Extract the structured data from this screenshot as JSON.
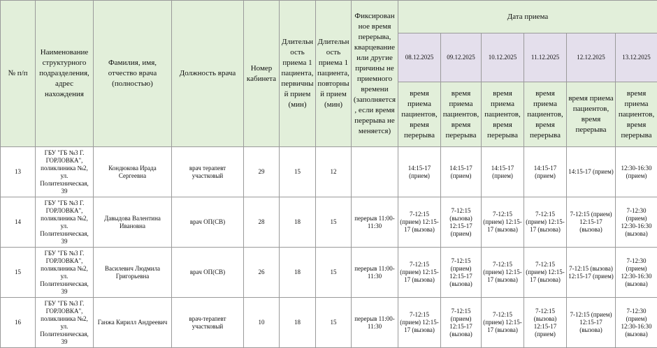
{
  "table": {
    "headers": {
      "num": "№ п/п",
      "org": "Наименование структурного подразделения, адрес нахождения",
      "fio": "Фамилия, имя, отчество врача (полностью)",
      "position": "Должность врача",
      "cabinet": "Номер кабинета",
      "first": "Длительность приема 1 пациента, первичный прием (мин)",
      "repeat": "Длительность приема 1 пациента, повторный прием (мин)",
      "break": "Фиксированное время перерыва, кварцевание или другие причины не приемного времени (заполняется, если время перерыва не меняется)",
      "date_group": "Дата приема"
    },
    "dates": [
      "08.12.2025",
      "09.12.2025",
      "10.12.2025",
      "11.12.2025",
      "12.12.2025",
      "13.12.2025"
    ],
    "subheaders": [
      "время приема пациентов, время перерыва",
      "время приема пациентов, время перерыва",
      "время приема пациентов, время перерыва",
      "время приема пациентов, время перерыва",
      "время приема пациентов, время перерыва",
      "время приема пациентов, время перерыва"
    ],
    "rows": [
      {
        "num": 13,
        "org": "ГБУ \"ГБ №3 Г. ГОРЛОВКА\", поликлиника №2, ул. Политехническая, 39",
        "fio": "Кондюкова Ирада Сергеевна",
        "position": "врач терапевт участковый",
        "cabinet": 29,
        "first": 15,
        "repeat": 12,
        "break": null,
        "schedule": [
          "14:15-17 (прием)",
          "14:15-17 (прием)",
          "14:15-17 (прием)",
          "14:15-17 (прием)",
          "14:15-17 (прием)",
          "12:30-16:30 (прием)"
        ]
      },
      {
        "num": 14,
        "org": "ГБУ \"ГБ №3 Г. ГОРЛОВКА\", поликлиника №2, ул. Политехническая, 39",
        "fio": "Давыдова Валентина Ивановна",
        "position": "врач ОП(СВ)",
        "cabinet": 28,
        "first": 18,
        "repeat": 15,
        "break": "перерыв 11:00-11:30",
        "schedule": [
          "7-12:15 (прием) 12:15-17 (вызова)",
          "7-12:15 (вызова) 12:15-17 (прием)",
          "7-12:15 (прием) 12:15-17 (вызова)",
          "7-12:15 (прием) 12:15-17 (вызова)",
          "7-12:15 (прием) 12:15-17 (вызова)",
          "7-12:30 (прием) 12:30-16:30 (вызова)"
        ]
      },
      {
        "num": 15,
        "org": "ГБУ \"ГБ №3 Г. ГОРЛОВКА\", поликлиника №2, ул. Политехническая, 39",
        "fio": "Василевич Людмила Григорьевна",
        "position": "врач ОП(СВ)",
        "cabinet": 26,
        "first": 18,
        "repeat": 15,
        "break": "перерыв 11:00-11:30",
        "schedule": [
          "7-12:15 (прием) 12:15-17 (вызова)",
          "7-12:15 (прием) 12:15-17 (вызова)",
          "7-12:15 (прием) 12:15-17 (вызова)",
          "7-12:15 (прием) 12:15-17 (вызова)",
          "7-12:15 (вызова) 12:15-17 (прием)",
          "7-12:30 (прием) 12:30-16:30 (вызова)"
        ]
      },
      {
        "num": 16,
        "org": "ГБУ \"ГБ №3 Г. ГОРЛОВКА\", поликлиника №2, ул. Политехническая, 39",
        "fio": "Ганжа Кирилл Андреевич",
        "position": "врач-терапевт участковый",
        "cabinet": 10,
        "first": 18,
        "repeat": 15,
        "break": "перерыв 11:00-11:30",
        "schedule": [
          "7-12:15 (прием) 12:15-17 (вызова)",
          "7-12:15 (прием) 12:15-17 (вызова)",
          "7-12:15 (прием) 12:15-17 (вызова)",
          "7-12:15 (вызова) 12:15-17 (прием)",
          "7-12:15 (прием) 12:15-17 (вызова)",
          "7-12:30 (прием) 12:30-16:30 (вызова)"
        ]
      }
    ]
  }
}
